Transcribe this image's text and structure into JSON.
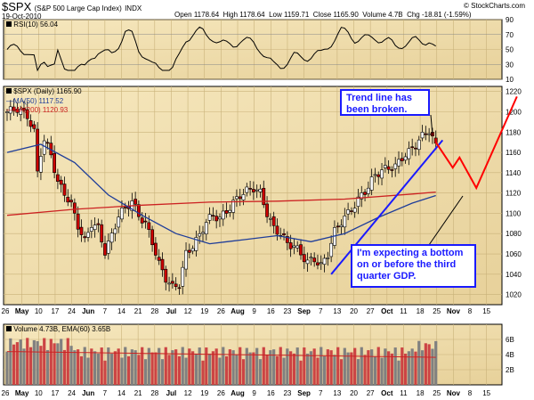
{
  "header": {
    "symbol": "$SPX",
    "name": "(S&P 500 Large Cap Index)",
    "exchange": "INDX",
    "date": "19-Oct-2010",
    "open_label": "Open",
    "open": "1178.64",
    "high_label": "High",
    "high": "1178.64",
    "low_label": "Low",
    "low": "1159.71",
    "close_label": "Close",
    "close": "1165.90",
    "volume_label": "Volume",
    "volume": "4.7B",
    "chg_label": "Chg",
    "chg": "-18.81 (-1.59%)",
    "copyright": "© StockCharts.com"
  },
  "rsi_panel": {
    "label": "RSI(10) 56.04",
    "ticks": [
      "90",
      "70",
      "50",
      "30",
      "10"
    ]
  },
  "price_panel": {
    "label": "$SPX (Daily) 1165.90",
    "ma50_label": "MA(50) 1117.52",
    "ma200_label": "MA(200) 1120.93",
    "ticks": [
      "1220",
      "1200",
      "1180",
      "1160",
      "1140",
      "1120",
      "1100",
      "1080",
      "1060",
      "1040",
      "1020"
    ]
  },
  "volume_panel": {
    "label": "Volume 4.73B, EMA(60) 3.65B",
    "ticks": [
      "6B",
      "4B",
      "2B"
    ]
  },
  "x_axis": {
    "labels": [
      "26",
      "May",
      "10",
      "17",
      "24",
      "Jun",
      "7",
      "14",
      "21",
      "28",
      "Jul",
      "12",
      "19",
      "26",
      "Aug",
      "9",
      "16",
      "23",
      "Sep",
      "7",
      "13",
      "20",
      "27",
      "Oct",
      "11",
      "18",
      "25",
      "Nov",
      "8",
      "15"
    ]
  },
  "annotations": {
    "trend_line_note": "Trend line has been broken.",
    "bottom_note": "I'm expecting a bottom on or before the third quarter GDP."
  },
  "colors": {
    "panel_bg": "#efdcaa",
    "up_candle": "#ffffff",
    "down_candle": "#cc0000",
    "ma50": "#1f3d99",
    "ma200": "#cc2222",
    "annotation": "#1a1aff",
    "projection": "#ff0000",
    "volume_up": "#808080",
    "volume_down": "#cc4444"
  },
  "chart_data": {
    "type": "candlestick",
    "title": "$SPX (S&P 500 Large Cap Index)",
    "ylim": [
      1010,
      1225
    ],
    "x_range_sessions": [
      0,
      145
    ],
    "close_series_approx": [
      {
        "x": 0,
        "y": 1200
      },
      {
        "x": 3,
        "y": 1203
      },
      {
        "x": 6,
        "y": 1196
      },
      {
        "x": 8,
        "y": 1180
      },
      {
        "x": 9,
        "y": 1140
      },
      {
        "x": 10,
        "y": 1160
      },
      {
        "x": 11,
        "y": 1172
      },
      {
        "x": 13,
        "y": 1158
      },
      {
        "x": 15,
        "y": 1130
      },
      {
        "x": 17,
        "y": 1120
      },
      {
        "x": 19,
        "y": 1108
      },
      {
        "x": 21,
        "y": 1088
      },
      {
        "x": 23,
        "y": 1072
      },
      {
        "x": 25,
        "y": 1090
      },
      {
        "x": 27,
        "y": 1085
      },
      {
        "x": 29,
        "y": 1062
      },
      {
        "x": 31,
        "y": 1078
      },
      {
        "x": 33,
        "y": 1098
      },
      {
        "x": 35,
        "y": 1105
      },
      {
        "x": 37,
        "y": 1112
      },
      {
        "x": 39,
        "y": 1098
      },
      {
        "x": 41,
        "y": 1090
      },
      {
        "x": 43,
        "y": 1072
      },
      {
        "x": 45,
        "y": 1050
      },
      {
        "x": 47,
        "y": 1036
      },
      {
        "x": 49,
        "y": 1027
      },
      {
        "x": 51,
        "y": 1030
      },
      {
        "x": 53,
        "y": 1060
      },
      {
        "x": 55,
        "y": 1068
      },
      {
        "x": 57,
        "y": 1078
      },
      {
        "x": 59,
        "y": 1092
      },
      {
        "x": 61,
        "y": 1098
      },
      {
        "x": 63,
        "y": 1095
      },
      {
        "x": 65,
        "y": 1102
      },
      {
        "x": 67,
        "y": 1110
      },
      {
        "x": 69,
        "y": 1118
      },
      {
        "x": 71,
        "y": 1122
      },
      {
        "x": 73,
        "y": 1125
      },
      {
        "x": 75,
        "y": 1120
      },
      {
        "x": 77,
        "y": 1100
      },
      {
        "x": 79,
        "y": 1085
      },
      {
        "x": 81,
        "y": 1080
      },
      {
        "x": 83,
        "y": 1070
      },
      {
        "x": 85,
        "y": 1068
      },
      {
        "x": 87,
        "y": 1060
      },
      {
        "x": 89,
        "y": 1052
      },
      {
        "x": 91,
        "y": 1055
      },
      {
        "x": 93,
        "y": 1048
      },
      {
        "x": 95,
        "y": 1060
      },
      {
        "x": 97,
        "y": 1082
      },
      {
        "x": 99,
        "y": 1092
      },
      {
        "x": 101,
        "y": 1100
      },
      {
        "x": 103,
        "y": 1108
      },
      {
        "x": 105,
        "y": 1118
      },
      {
        "x": 107,
        "y": 1126
      },
      {
        "x": 109,
        "y": 1138
      },
      {
        "x": 111,
        "y": 1142
      },
      {
        "x": 113,
        "y": 1145
      },
      {
        "x": 115,
        "y": 1146
      },
      {
        "x": 117,
        "y": 1155
      },
      {
        "x": 119,
        "y": 1160
      },
      {
        "x": 121,
        "y": 1168
      },
      {
        "x": 123,
        "y": 1176
      },
      {
        "x": 125,
        "y": 1182
      },
      {
        "x": 127,
        "y": 1166
      }
    ],
    "ma50_series_approx": [
      {
        "x": 0,
        "y": 1160
      },
      {
        "x": 10,
        "y": 1168
      },
      {
        "x": 20,
        "y": 1150
      },
      {
        "x": 30,
        "y": 1118
      },
      {
        "x": 40,
        "y": 1098
      },
      {
        "x": 50,
        "y": 1080
      },
      {
        "x": 60,
        "y": 1070
      },
      {
        "x": 70,
        "y": 1074
      },
      {
        "x": 80,
        "y": 1078
      },
      {
        "x": 90,
        "y": 1072
      },
      {
        "x": 100,
        "y": 1080
      },
      {
        "x": 110,
        "y": 1096
      },
      {
        "x": 120,
        "y": 1110
      },
      {
        "x": 127,
        "y": 1117.52
      }
    ],
    "ma200_series_approx": [
      {
        "x": 0,
        "y": 1098
      },
      {
        "x": 20,
        "y": 1104
      },
      {
        "x": 40,
        "y": 1108
      },
      {
        "x": 60,
        "y": 1111
      },
      {
        "x": 80,
        "y": 1112
      },
      {
        "x": 100,
        "y": 1114
      },
      {
        "x": 120,
        "y": 1119
      },
      {
        "x": 127,
        "y": 1120.93
      }
    ],
    "trend_line": [
      {
        "x": 96,
        "y": 1040
      },
      {
        "x": 129,
        "y": 1172
      }
    ],
    "projection_line": [
      {
        "x": 127,
        "y": 1170
      },
      {
        "x": 132,
        "y": 1145
      },
      {
        "x": 134,
        "y": 1155
      },
      {
        "x": 139,
        "y": 1125
      },
      {
        "x": 151,
        "y": 1215
      }
    ],
    "rsi_ylim": [
      10,
      90
    ],
    "rsi_value": 56.04,
    "volume_last": "4.73B",
    "volume_ema60": "3.65B"
  }
}
